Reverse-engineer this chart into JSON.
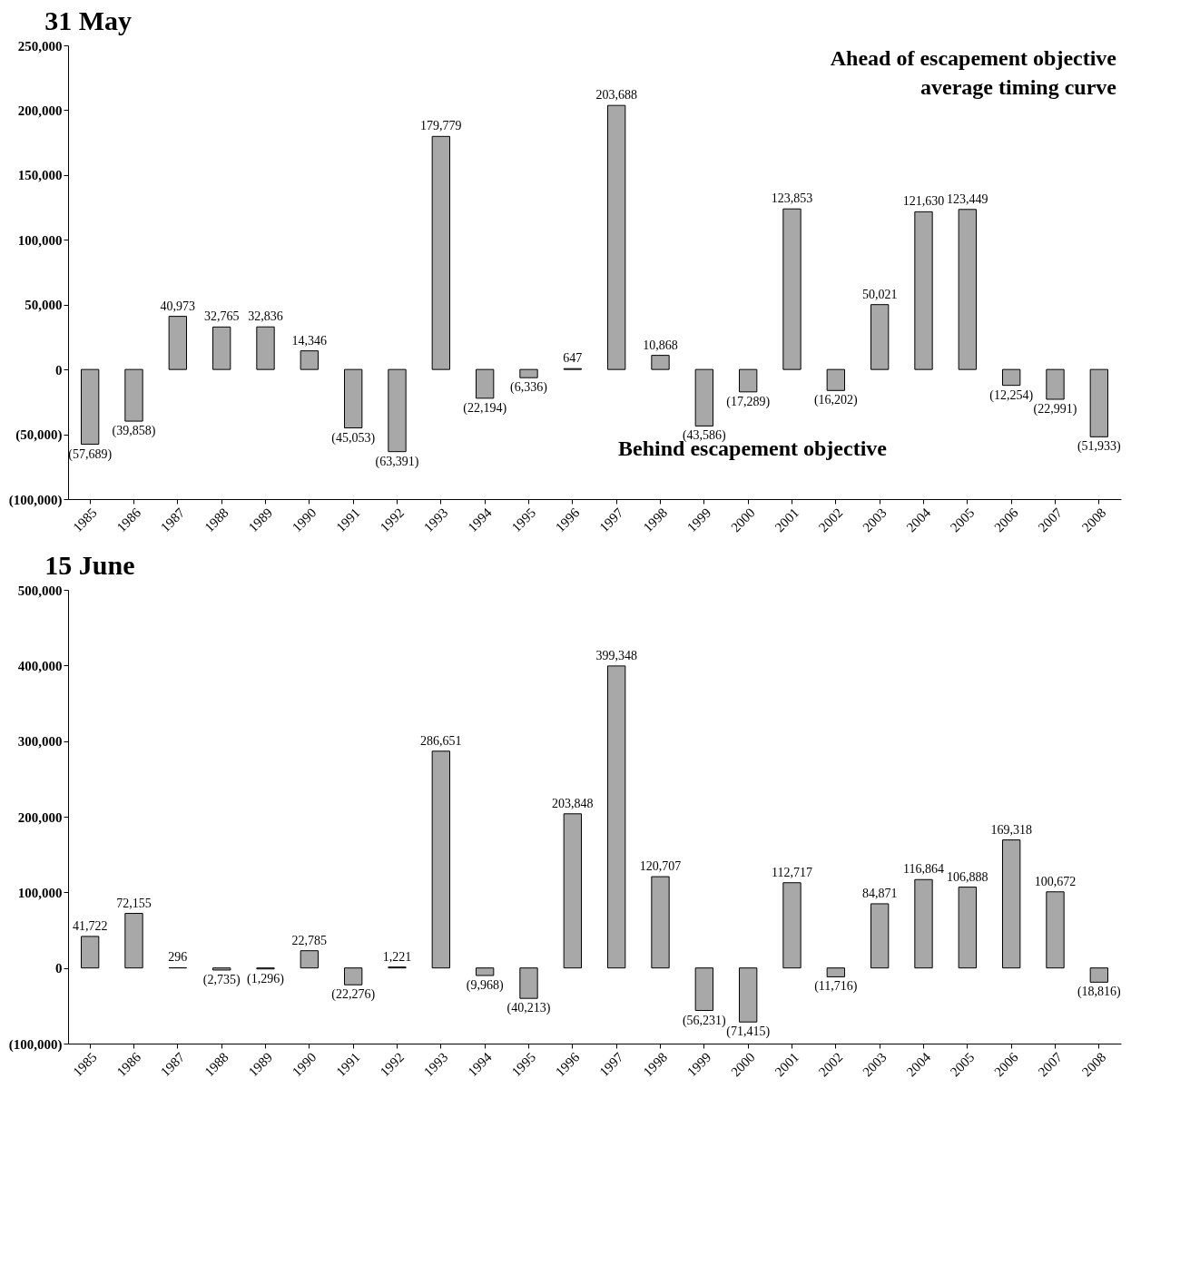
{
  "chart_data": [
    {
      "type": "bar",
      "title": "31 May",
      "categories": [
        "1985",
        "1986",
        "1987",
        "1988",
        "1989",
        "1990",
        "1991",
        "1992",
        "1993",
        "1994",
        "1995",
        "1996",
        "1997",
        "1998",
        "1999",
        "2000",
        "2001",
        "2002",
        "2003",
        "2004",
        "2005",
        "2006",
        "2007",
        "2008"
      ],
      "values": [
        -57689,
        -39858,
        40973,
        32765,
        32836,
        14346,
        -45053,
        -63391,
        179779,
        -22194,
        -6336,
        647,
        203688,
        10868,
        -43586,
        -17289,
        123853,
        -16202,
        50021,
        121630,
        123449,
        -12254,
        -22991,
        -51933
      ],
      "value_labels": [
        "(57,689)",
        "(39,858)",
        "40,973",
        "32,765",
        "32,836",
        "14,346",
        "(45,053)",
        "(63,391)",
        "179,779",
        "(22,194)",
        "(6,336)",
        "647",
        "203,688",
        "10,868",
        "(43,586)",
        "(17,289)",
        "123,853",
        "(16,202)",
        "50,021",
        "121,630",
        "123,449",
        "(12,254)",
        "(22,991)",
        "(51,933)"
      ],
      "color": "#a8a8a8",
      "ylim": [
        -100000,
        250000
      ],
      "yticks": [
        {
          "value": -100000,
          "label": "(100,000)"
        },
        {
          "value": -50000,
          "label": "(50,000)"
        },
        0,
        {
          "value": 50000,
          "label": "50,000"
        },
        {
          "value": 100000,
          "label": "100,000"
        },
        {
          "value": 150000,
          "label": "150,000"
        },
        {
          "value": 200000,
          "label": "200,000"
        },
        {
          "value": 250000,
          "label": "250,000"
        }
      ],
      "annotations": [
        "Ahead of escapement objective",
        "average timing curve",
        "Behind escapement objective"
      ]
    },
    {
      "type": "bar",
      "title": "15 June",
      "categories": [
        "1985",
        "1986",
        "1987",
        "1988",
        "1989",
        "1990",
        "1991",
        "1992",
        "1993",
        "1994",
        "1995",
        "1996",
        "1997",
        "1998",
        "1999",
        "2000",
        "2001",
        "2002",
        "2003",
        "2004",
        "2005",
        "2006",
        "2007",
        "2008"
      ],
      "values": [
        41722,
        72155,
        296,
        -2735,
        -1296,
        22785,
        -22276,
        1221,
        286651,
        -9968,
        -40213,
        203848,
        399348,
        120707,
        -56231,
        -71415,
        112717,
        -11716,
        84871,
        116864,
        106888,
        169318,
        100672,
        -18816
      ],
      "value_labels": [
        "41,722",
        "72,155",
        "296",
        "(2,735)",
        "(1,296)",
        "22,785",
        "(22,276)",
        "1,221",
        "286,651",
        "(9,968)",
        "(40,213)",
        "203,848",
        "399,348",
        "120,707",
        "(56,231)",
        "(71,415)",
        "112,717",
        "(11,716)",
        "84,871",
        "116,864",
        "106,888",
        "169,318",
        "100,672",
        "(18,816)"
      ],
      "color": "#a8a8a8",
      "ylim": [
        -100000,
        500000
      ],
      "yticks": [
        {
          "value": -100000,
          "label": "(100,000)"
        },
        0,
        {
          "value": 100000,
          "label": "100,000"
        },
        {
          "value": 200000,
          "label": "200,000"
        },
        {
          "value": 300000,
          "label": "300,000"
        },
        {
          "value": 400000,
          "label": "400,000"
        },
        {
          "value": 500000,
          "label": "500,000"
        }
      ]
    }
  ]
}
